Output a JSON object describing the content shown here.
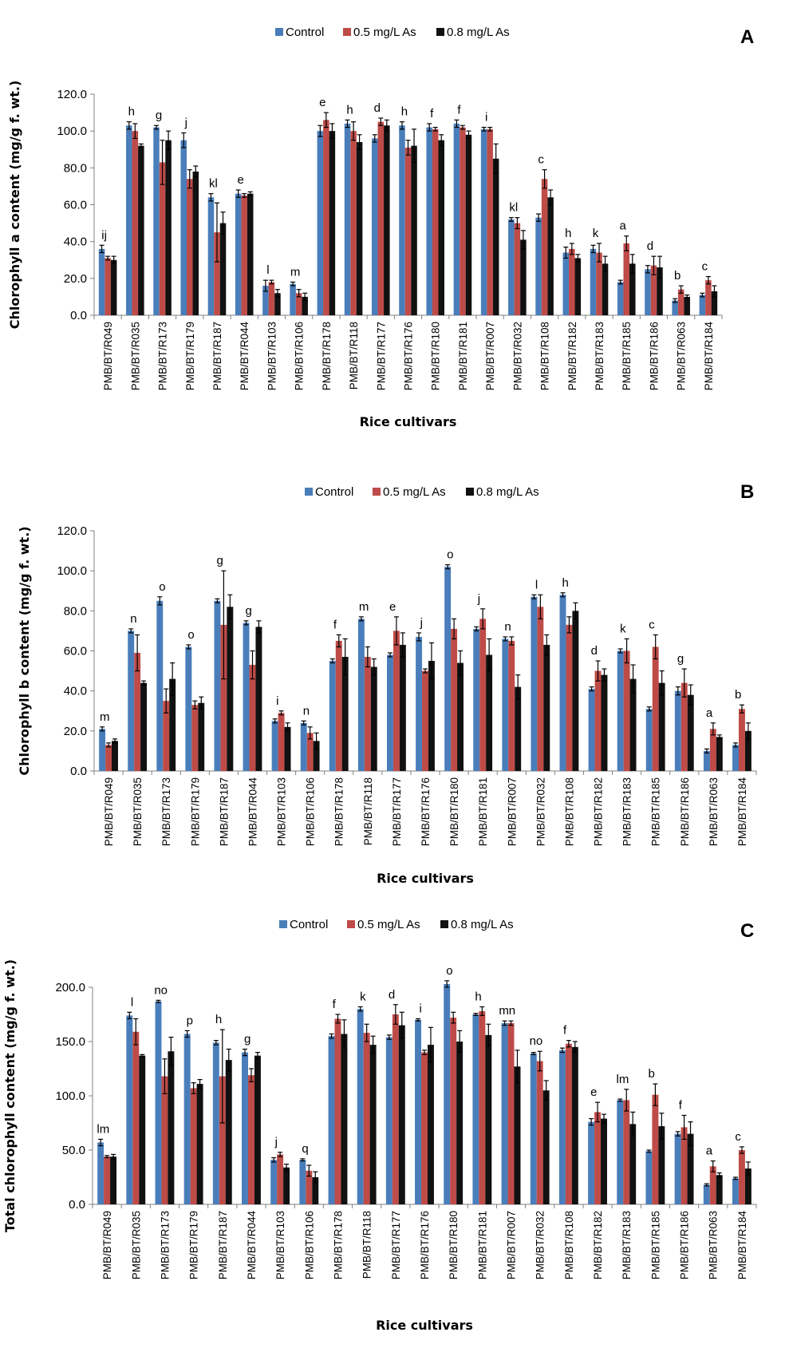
{
  "colors": {
    "control": "#4a7ebb",
    "as05": "#be4b48",
    "as08": "#111111"
  },
  "chart_data": [
    {
      "type": "bar",
      "panel_label": "A",
      "categories": [
        "PMB/BT/R049",
        "PMB/BT/R035",
        "PMB/BT/R173",
        "PMB/BT/R179",
        "PMB/BT/R187",
        "PMB/BT/R044",
        "PMB/BT/R103",
        "PMB/BT/R106",
        "PMB/BT/R178",
        "PMB/BT/R118",
        "PMB/BT/R177",
        "PMB/BT/R176",
        "PMB/BT/R180",
        "PMB/BT/R181",
        "PMB/BT/R007",
        "PMB/BT/R032",
        "PMB/BT/R108",
        "PMB/BT/R182",
        "PMB/BT/R183",
        "PMB/BT/R185",
        "PMB/BT/R186",
        "PMB/BT/R063",
        "PMB/BT/R184"
      ],
      "series": [
        {
          "name": "Control",
          "values": [
            36,
            103,
            102,
            95,
            64,
            66,
            16,
            17,
            100,
            104,
            96,
            103,
            102,
            104,
            101,
            52,
            53,
            34,
            36,
            18,
            25,
            8,
            11
          ],
          "errors": [
            2,
            2,
            1,
            4,
            2,
            2,
            3,
            1,
            3,
            2,
            2,
            2,
            2,
            2,
            1,
            1,
            2,
            3,
            2,
            1,
            2,
            1,
            1
          ]
        },
        {
          "name": "0.5 mg/L As",
          "values": [
            31,
            100,
            83,
            74,
            45,
            65,
            18,
            12,
            106,
            100,
            105,
            91,
            101,
            102,
            101,
            50,
            74,
            36,
            34,
            39,
            27,
            14,
            19
          ],
          "errors": [
            1,
            4,
            12,
            5,
            16,
            1,
            1,
            2,
            4,
            5,
            2,
            4,
            1,
            1,
            1,
            3,
            5,
            3,
            5,
            4,
            5,
            2,
            2
          ]
        },
        {
          "name": "0.8 mg/L As",
          "values": [
            30,
            92,
            95,
            78,
            50,
            66,
            12,
            10,
            100,
            94,
            103,
            92,
            95,
            98,
            85,
            41,
            64,
            31,
            28,
            28,
            26,
            10,
            13
          ],
          "errors": [
            2,
            1,
            5,
            3,
            6,
            1,
            2,
            2,
            4,
            4,
            3,
            9,
            3,
            2,
            8,
            5,
            4,
            2,
            4,
            5,
            6,
            1,
            3
          ]
        }
      ],
      "letters": [
        "ij",
        "h",
        "g",
        "j",
        "kl",
        "e",
        "l",
        "m",
        "e",
        "h",
        "d",
        "h",
        "f",
        "f",
        "i",
        "kl",
        "c",
        "h",
        "k",
        "a",
        "d",
        "b",
        "c"
      ],
      "ylabel": "Chlorophyll a content (mg/g f. wt.)",
      "xlabel": "Rice cultivars",
      "ylim": [
        0,
        120
      ],
      "yticks": [
        "0.0",
        "20.0",
        "40.0",
        "60.0",
        "80.0",
        "100.0",
        "120.0"
      ],
      "legend": "top-center"
    },
    {
      "type": "bar",
      "panel_label": "B",
      "categories": [
        "PMB/BT/R049",
        "PMB/BT/R035",
        "PMB/BT/R173",
        "PMB/BT/R179",
        "PMB/BT/R187",
        "PMB/BT/R044",
        "PMB/BT/R103",
        "PMB/BT/R106",
        "PMB/BT/R178",
        "PMB/BT/R118",
        "PMB/BT/R177",
        "PMB/BT/R176",
        "PMB/BT/R180",
        "PMB/BT/R181",
        "PMB/BT/R007",
        "PMB/BT/R032",
        "PMB/BT/R108",
        "PMB/BT/R182",
        "PMB/BT/R183",
        "PMB/BT/R185",
        "PMB/BT/R186",
        "PMB/BT/R063",
        "PMB/BT/R184"
      ],
      "series": [
        {
          "name": "Control",
          "values": [
            21,
            70,
            85,
            62,
            85,
            74,
            25,
            24,
            55,
            76,
            58,
            67,
            102,
            71,
            66,
            87,
            88,
            41,
            60,
            31,
            40,
            10,
            13
          ],
          "errors": [
            1,
            1,
            2,
            1,
            1,
            1,
            1,
            1,
            1,
            1,
            1,
            2,
            1,
            1,
            1,
            1,
            1,
            1,
            1,
            1,
            2,
            1,
            1
          ]
        },
        {
          "name": "0.5 mg/L As",
          "values": [
            13,
            59,
            35,
            33,
            73,
            53,
            29,
            19,
            65,
            57,
            70,
            50,
            71,
            76,
            65,
            82,
            73,
            50,
            60,
            62,
            44,
            21,
            31
          ],
          "errors": [
            1,
            9,
            6,
            2,
            27,
            7,
            1,
            3,
            3,
            5,
            7,
            1,
            5,
            5,
            2,
            6,
            4,
            5,
            6,
            6,
            7,
            3,
            2
          ]
        },
        {
          "name": "0.8 mg/L As",
          "values": [
            15,
            44,
            46,
            34,
            82,
            72,
            22,
            15,
            57,
            52,
            63,
            55,
            54,
            58,
            42,
            63,
            80,
            48,
            46,
            44,
            38,
            17,
            20
          ],
          "errors": [
            1,
            1,
            8,
            3,
            6,
            3,
            2,
            4,
            9,
            4,
            6,
            9,
            6,
            8,
            6,
            5,
            4,
            3,
            7,
            6,
            5,
            1,
            4
          ]
        }
      ],
      "letters": [
        "m",
        "n",
        "o",
        "o",
        "g",
        "g",
        "i",
        "n",
        "f",
        "m",
        "e",
        "j",
        "o",
        "j",
        "n",
        "l",
        "h",
        "d",
        "k",
        "c",
        "g",
        "a",
        "b"
      ],
      "ylabel": "Chlorophyll b content (mg/g f. wt.)",
      "xlabel": "Rice cultivars",
      "ylim": [
        0,
        120
      ],
      "yticks": [
        "0.0",
        "20.0",
        "40.0",
        "60.0",
        "80.0",
        "100.0",
        "120.0"
      ],
      "legend": "top-center"
    },
    {
      "type": "bar",
      "panel_label": "C",
      "categories": [
        "PMB/BT/R049",
        "PMB/BT/R035",
        "PMB/BT/R173",
        "PMB/BT/R179",
        "PMB/BT/R187",
        "PMB/BT/R044",
        "PMB/BT/R103",
        "PMB/BT/R106",
        "PMB/BT/R178",
        "PMB/BT/R118",
        "PMB/BT/R177",
        "PMB/BT/R176",
        "PMB/BT/R180",
        "PMB/BT/R181",
        "PMB/BT/R007",
        "PMB/BT/R032",
        "PMB/BT/R108",
        "PMB/BT/R182",
        "PMB/BT/R183",
        "PMB/BT/R185",
        "PMB/BT/R186",
        "PMB/BT/R063",
        "PMB/BT/R184"
      ],
      "series": [
        {
          "name": "Control",
          "values": [
            57,
            174,
            187,
            157,
            149,
            140,
            41,
            41,
            155,
            180,
            154,
            170,
            203,
            175,
            167,
            139,
            142,
            76,
            96,
            49,
            65,
            18,
            24
          ],
          "errors": [
            3,
            3,
            1,
            3,
            2,
            3,
            2,
            1,
            2,
            2,
            2,
            1,
            3,
            1,
            2,
            1,
            2,
            3,
            1,
            1,
            2,
            1,
            1
          ]
        },
        {
          "name": "0.5 mg/L As",
          "values": [
            44,
            159,
            118,
            107,
            118,
            119,
            46,
            31,
            171,
            158,
            175,
            140,
            172,
            178,
            167,
            132,
            148,
            85,
            96,
            101,
            71,
            35,
            50
          ],
          "errors": [
            1,
            12,
            16,
            5,
            43,
            6,
            2,
            5,
            4,
            8,
            9,
            2,
            5,
            4,
            2,
            9,
            3,
            9,
            10,
            10,
            11,
            5,
            3
          ]
        },
        {
          "name": "0.8 mg/L As",
          "values": [
            44,
            137,
            141,
            111,
            133,
            137,
            34,
            25,
            157,
            147,
            165,
            147,
            150,
            156,
            127,
            105,
            145,
            79,
            74,
            72,
            65,
            27,
            33
          ],
          "errors": [
            2,
            1,
            13,
            4,
            10,
            3,
            3,
            5,
            13,
            8,
            12,
            16,
            10,
            10,
            15,
            9,
            5,
            4,
            11,
            12,
            11,
            2,
            6
          ]
        }
      ],
      "letters": [
        "lm",
        "l",
        "no",
        "p",
        "h",
        "g",
        "j",
        "q",
        "f",
        "k",
        "d",
        "i",
        "o",
        "h",
        "mn",
        "no",
        "f",
        "e",
        "lm",
        "b",
        "f",
        "a",
        "c"
      ],
      "ylabel": "Total chlorophyll content (mg/g f. wt.)",
      "xlabel": "Rice cultivars",
      "ylim": [
        0,
        200
      ],
      "yticks": [
        "0.0",
        "50.0",
        "100.0",
        "150.0",
        "200.0"
      ],
      "legend": "top-center"
    }
  ]
}
